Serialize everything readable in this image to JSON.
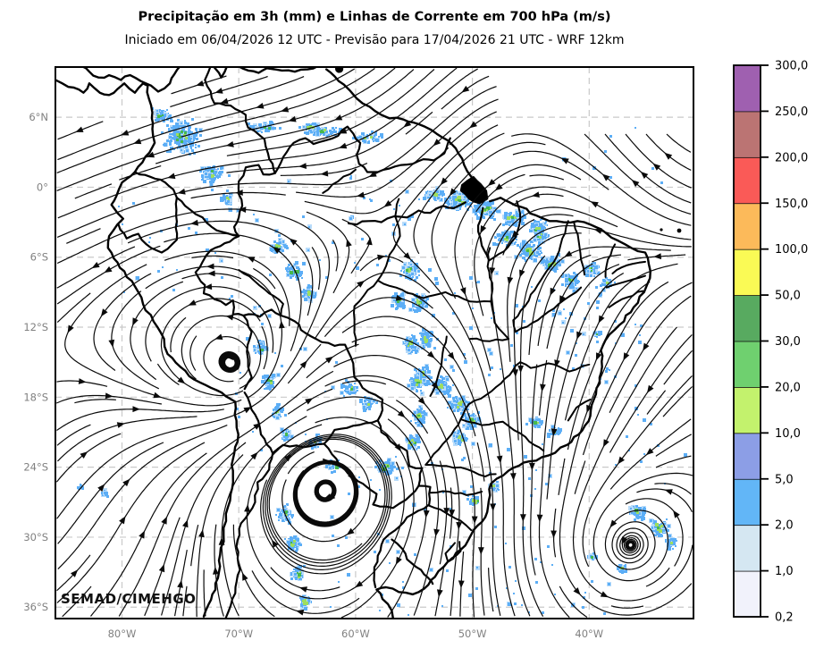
{
  "title": "Precipitação em 3h (mm) e Linhas de Corrente em 700 hPa (m/s)",
  "subtitle": "Iniciado em 06/04/2026 12 UTC - Previsão para 17/04/2026 21 UTC - WRF 12km",
  "watermark": "SEMAD/CIMEHGO",
  "axes": {
    "lat_tick_labels": [
      "6°N",
      "0°",
      "6°S",
      "12°S",
      "18°S",
      "24°S",
      "30°S",
      "36°S"
    ],
    "lon_tick_labels": [
      "80°W",
      "70°W",
      "60°W",
      "50°W",
      "40°W"
    ]
  },
  "colorbar": {
    "tick_labels_top_to_bottom": [
      "300,0",
      "250,0",
      "200,0",
      "150,0",
      "100,0",
      "50,0",
      "30,0",
      "20,0",
      "10,0",
      "5,0",
      "2,0",
      "1,0",
      "0,2"
    ],
    "levels_mm": [
      0.2,
      1,
      2,
      5,
      10,
      20,
      30,
      50,
      100,
      150,
      200,
      250,
      300
    ],
    "segment_colors_bottom_to_top": [
      "#f1f2fb",
      "#d5e7f2",
      "#62b6f7",
      "#8c9ee6",
      "#c3f26d",
      "#6fd06f",
      "#58aa60",
      "#fafa55",
      "#fcba5a",
      "#fa5a57",
      "#bb7473",
      "#9f60b0"
    ]
  },
  "map": {
    "fill_field": "Precipitação em 3h (mm)",
    "line_field": "Linhas de Corrente em 700 hPa (m/s)",
    "precip_dot_colors": {
      "light_blue": "#5caef6",
      "halo_blue": "#b9dcfa",
      "periwinkle": "#93a4e9",
      "green": "#9ede5f",
      "dark_green": "#46b84f"
    },
    "line_color": "#0a0a0a",
    "grid_color": "#c9c9c9",
    "tick_label_color": "#808080"
  }
}
